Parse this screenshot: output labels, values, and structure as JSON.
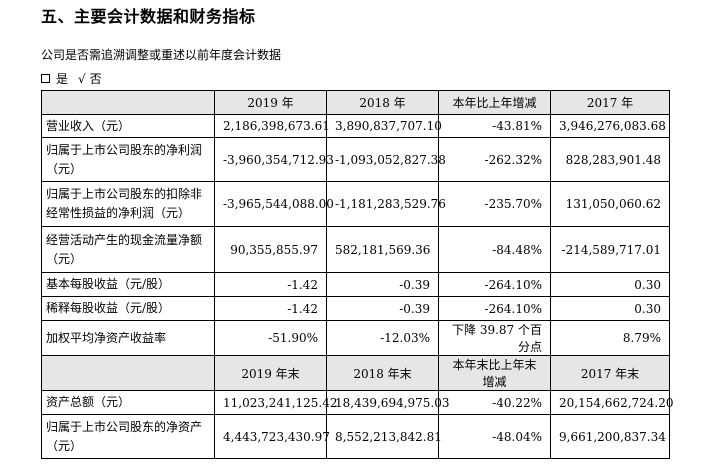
{
  "section_title": "五、主要会计数据和财务指标",
  "restate_question": "公司是否需追溯调整或重述以前年度会计数据",
  "choice": {
    "yes_label": "是",
    "check_mark": "√",
    "no_label": "否"
  },
  "table1": {
    "headers": [
      "",
      "2019 年",
      "2018 年",
      "本年比上年增减",
      "2017 年"
    ],
    "rows": [
      [
        "营业收入（元）",
        "2,186,398,673.61",
        "3,890,837,707.10",
        "-43.81%",
        "3,946,276,083.68"
      ],
      [
        "归属于上市公司股东的净利润（元）",
        "-3,960,354,712.93",
        "-1,093,052,827.38",
        "-262.32%",
        "828,283,901.48"
      ],
      [
        "归属于上市公司股东的扣除非经常性损益的净利润（元）",
        "-3,965,544,088.00",
        "-1,181,283,529.76",
        "-235.70%",
        "131,050,060.62"
      ],
      [
        "经营活动产生的现金流量净额（元）",
        "90,355,855.97",
        "582,181,569.36",
        "-84.48%",
        "-214,589,717.01"
      ],
      [
        "基本每股收益（元/股）",
        "-1.42",
        "-0.39",
        "-264.10%",
        "0.30"
      ],
      [
        "稀释每股收益（元/股）",
        "-1.42",
        "-0.39",
        "-264.10%",
        "0.30"
      ],
      [
        "加权平均净资产收益率",
        "-51.90%",
        "-12.03%",
        "下降 39.87 个百分点",
        "8.79%"
      ]
    ]
  },
  "table2": {
    "headers": [
      "",
      "2019 年末",
      "2018 年末",
      "本年末比上年末增减",
      "2017 年末"
    ],
    "rows": [
      [
        "资产总额（元）",
        "11,023,241,125.42",
        "18,439,694,975.03",
        "-40.22%",
        "20,154,662,724.20"
      ],
      [
        "归属于上市公司股东的净资产（元）",
        "4,443,723,430.97",
        "8,552,213,842.81",
        "-48.04%",
        "9,661,200,837.34"
      ]
    ]
  }
}
